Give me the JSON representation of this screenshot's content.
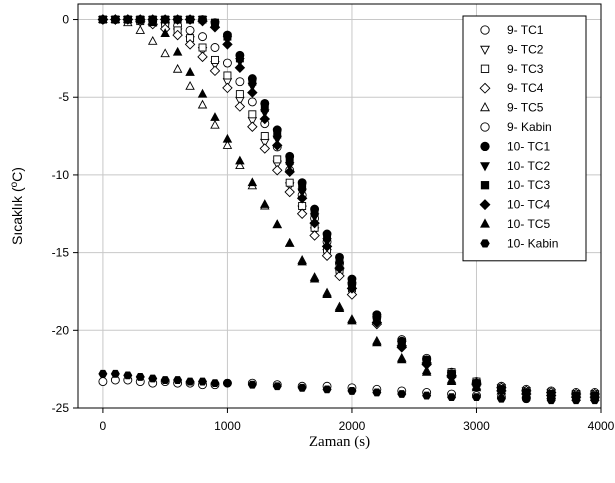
{
  "chart_data": {
    "type": "scatter",
    "title": "",
    "xlabel": "Zaman (s)",
    "ylabel": "Sıcaklık (",
    "ylabel_sup": "o",
    "ylabel_tail": "C)",
    "xlim": [
      -200,
      4000
    ],
    "ylim": [
      -25,
      1
    ],
    "xticks": [
      0,
      1000,
      2000,
      3000,
      4000
    ],
    "yticks": [
      0,
      -5,
      -10,
      -15,
      -20,
      -25
    ],
    "grid": true,
    "legend_position": "top-right",
    "series": [
      {
        "name": "9- TC1",
        "marker": "circle",
        "filled": false,
        "x": [
          0,
          100,
          200,
          300,
          400,
          500,
          600,
          700,
          800,
          900,
          1000,
          1100,
          1200,
          1300,
          1400,
          1500,
          1600,
          1700,
          1800,
          1900,
          2000,
          2200,
          2400,
          2600,
          2800,
          3000,
          3200,
          3400,
          3600,
          3800,
          3950
        ],
        "y": [
          0,
          0,
          0,
          0,
          -0.1,
          -0.2,
          -0.4,
          -0.7,
          -1.1,
          -1.8,
          -2.8,
          -4,
          -5.3,
          -6.7,
          -8.2,
          -9.7,
          -11.3,
          -12.8,
          -14.3,
          -15.7,
          -17,
          -19,
          -20.6,
          -21.8,
          -22.7,
          -23.3,
          -23.6,
          -23.8,
          -23.9,
          -24,
          -24
        ]
      },
      {
        "name": "9- TC2",
        "marker": "triangle-down",
        "filled": false,
        "x": [
          0,
          100,
          200,
          300,
          400,
          500,
          600,
          700,
          800,
          900,
          1000,
          1100,
          1200,
          1300,
          1400,
          1500,
          1600,
          1700,
          1800,
          1900,
          2000,
          2200,
          2400,
          2600,
          2800,
          3000,
          3200,
          3400,
          3600,
          3800,
          3950
        ],
        "y": [
          0,
          0,
          0,
          -0.1,
          -0.2,
          -0.4,
          -0.8,
          -1.3,
          -2,
          -2.9,
          -4,
          -5.2,
          -6.5,
          -7.9,
          -9.3,
          -10.7,
          -12.2,
          -13.6,
          -15,
          -16.3,
          -17.5,
          -19.4,
          -20.9,
          -22,
          -22.8,
          -23.4,
          -23.7,
          -23.9,
          -24,
          -24.1,
          -24.1
        ]
      },
      {
        "name": "9- TC3",
        "marker": "square",
        "filled": false,
        "x": [
          0,
          100,
          200,
          300,
          400,
          500,
          600,
          700,
          800,
          900,
          1000,
          1100,
          1200,
          1300,
          1400,
          1500,
          1600,
          1700,
          1800,
          1900,
          2000,
          2200,
          2400,
          2600,
          2800,
          3000,
          3200,
          3400,
          3600,
          3800,
          3950
        ],
        "y": [
          0,
          0,
          0,
          -0.1,
          -0.2,
          -0.4,
          -0.7,
          -1.2,
          -1.8,
          -2.6,
          -3.6,
          -4.8,
          -6.1,
          -7.5,
          -9,
          -10.5,
          -12,
          -13.4,
          -14.8,
          -16.1,
          -17.3,
          -19.3,
          -20.8,
          -21.9,
          -22.7,
          -23.3,
          -23.7,
          -23.9,
          -24,
          -24.1,
          -24.1
        ]
      },
      {
        "name": "9- TC4",
        "marker": "diamond",
        "filled": false,
        "x": [
          0,
          100,
          200,
          300,
          400,
          500,
          600,
          700,
          800,
          900,
          1000,
          1100,
          1200,
          1300,
          1400,
          1500,
          1600,
          1700,
          1800,
          1900,
          2000,
          2200,
          2400,
          2600,
          2800,
          3000,
          3200,
          3400,
          3600,
          3800,
          3950
        ],
        "y": [
          0,
          0,
          0,
          -0.1,
          -0.3,
          -0.6,
          -1,
          -1.6,
          -2.4,
          -3.3,
          -4.4,
          -5.6,
          -6.9,
          -8.3,
          -9.7,
          -11.1,
          -12.5,
          -13.9,
          -15.2,
          -16.5,
          -17.7,
          -19.6,
          -21,
          -22.1,
          -22.9,
          -23.4,
          -23.7,
          -23.9,
          -24,
          -24.1,
          -24.1
        ]
      },
      {
        "name": "9- TC5",
        "marker": "triangle-up",
        "filled": false,
        "x": [
          0,
          100,
          200,
          300,
          400,
          500,
          600,
          700,
          800,
          900,
          1000,
          1100,
          1200,
          1300,
          1400,
          1500,
          1600,
          1700,
          1800,
          1900,
          2000,
          2200,
          2400,
          2600,
          2800,
          3000,
          3200,
          3400,
          3600,
          3800,
          3950
        ],
        "y": [
          0,
          0,
          -0.2,
          -0.7,
          -1.4,
          -2.2,
          -3.2,
          -4.3,
          -5.5,
          -6.8,
          -8.1,
          -9.4,
          -10.7,
          -12,
          -13.2,
          -14.4,
          -15.5,
          -16.6,
          -17.6,
          -18.5,
          -19.3,
          -20.7,
          -21.8,
          -22.6,
          -23.2,
          -23.6,
          -23.9,
          -24.1,
          -24.2,
          -24.3,
          -24.3
        ]
      },
      {
        "name": "9- Kabin",
        "marker": "circle",
        "filled": false,
        "x": [
          0,
          100,
          200,
          300,
          400,
          500,
          600,
          700,
          800,
          900,
          1000,
          1200,
          1400,
          1600,
          1800,
          2000,
          2200,
          2400,
          2600,
          2800,
          3000,
          3200,
          3400,
          3600,
          3800,
          3950
        ],
        "y": [
          -23.3,
          -23.2,
          -23.2,
          -23.3,
          -23.4,
          -23.3,
          -23.4,
          -23.4,
          -23.5,
          -23.5,
          -23.4,
          -23.4,
          -23.5,
          -23.6,
          -23.6,
          -23.7,
          -23.8,
          -23.9,
          -24,
          -24.1,
          -24.2,
          -24.3,
          -24.4,
          -24.4,
          -24.3,
          -24.4
        ]
      },
      {
        "name": "10- TC1",
        "marker": "circle",
        "filled": true,
        "x": [
          0,
          100,
          200,
          300,
          400,
          500,
          600,
          700,
          800,
          900,
          1000,
          1100,
          1200,
          1300,
          1400,
          1500,
          1600,
          1700,
          1800,
          1900,
          2000,
          2200,
          2400,
          2600,
          2800,
          3000,
          3200,
          3400,
          3600,
          3800,
          3950
        ],
        "y": [
          0,
          0,
          0,
          0,
          0,
          0,
          0,
          0,
          0,
          -0.2,
          -1,
          -2.3,
          -3.8,
          -5.4,
          -7.1,
          -8.8,
          -10.5,
          -12.2,
          -13.8,
          -15.3,
          -16.7,
          -19,
          -20.7,
          -21.9,
          -22.8,
          -23.4,
          -23.8,
          -24,
          -24.1,
          -24.2,
          -24.2
        ]
      },
      {
        "name": "10- TC2",
        "marker": "triangle-down",
        "filled": true,
        "x": [
          0,
          100,
          200,
          300,
          400,
          500,
          600,
          700,
          800,
          900,
          1000,
          1100,
          1200,
          1300,
          1400,
          1500,
          1600,
          1700,
          1800,
          1900,
          2000,
          2200,
          2400,
          2600,
          2800,
          3000,
          3200,
          3400,
          3600,
          3800,
          3950
        ],
        "y": [
          0,
          0,
          0,
          0,
          0,
          0,
          0,
          0,
          0,
          -0.3,
          -1.3,
          -2.7,
          -4.3,
          -6,
          -7.7,
          -9.4,
          -11.1,
          -12.7,
          -14.3,
          -15.8,
          -17.1,
          -19.3,
          -20.9,
          -22.1,
          -22.9,
          -23.5,
          -23.8,
          -24,
          -24.2,
          -24.2,
          -24.3
        ]
      },
      {
        "name": "10- TC3",
        "marker": "square",
        "filled": true,
        "x": [
          0,
          100,
          200,
          300,
          400,
          500,
          600,
          700,
          800,
          900,
          1000,
          1100,
          1200,
          1300,
          1400,
          1500,
          1600,
          1700,
          1800,
          1900,
          2000,
          2200,
          2400,
          2600,
          2800,
          3000,
          3200,
          3400,
          3600,
          3800,
          3950
        ],
        "y": [
          0,
          0,
          0,
          0,
          0,
          0,
          0,
          0,
          0,
          -0.2,
          -1.1,
          -2.5,
          -4,
          -5.7,
          -7.4,
          -9.1,
          -10.8,
          -12.4,
          -14,
          -15.5,
          -16.9,
          -19.1,
          -20.8,
          -22,
          -22.8,
          -23.4,
          -23.8,
          -24,
          -24.1,
          -24.2,
          -24.2
        ]
      },
      {
        "name": "10- TC4",
        "marker": "diamond",
        "filled": true,
        "x": [
          0,
          100,
          200,
          300,
          400,
          500,
          600,
          700,
          800,
          900,
          1000,
          1100,
          1200,
          1300,
          1400,
          1500,
          1600,
          1700,
          1800,
          1900,
          2000,
          2200,
          2400,
          2600,
          2800,
          3000,
          3200,
          3400,
          3600,
          3800,
          3950
        ],
        "y": [
          0,
          0,
          0,
          0,
          0,
          0,
          0,
          0,
          -0.1,
          -0.5,
          -1.6,
          -3.1,
          -4.7,
          -6.4,
          -8.1,
          -9.8,
          -11.5,
          -13.1,
          -14.6,
          -16,
          -17.3,
          -19.5,
          -21.1,
          -22.2,
          -23,
          -23.5,
          -23.9,
          -24.1,
          -24.2,
          -24.3,
          -24.3
        ]
      },
      {
        "name": "10- TC5",
        "marker": "triangle-up",
        "filled": true,
        "x": [
          0,
          100,
          200,
          300,
          400,
          500,
          600,
          700,
          800,
          900,
          1000,
          1100,
          1200,
          1300,
          1400,
          1500,
          1600,
          1700,
          1800,
          1900,
          2000,
          2200,
          2400,
          2600,
          2800,
          3000,
          3200,
          3400,
          3600,
          3800,
          3950
        ],
        "y": [
          0,
          0,
          0,
          0,
          -0.2,
          -0.9,
          -2.1,
          -3.4,
          -4.8,
          -6.3,
          -7.7,
          -9.1,
          -10.5,
          -11.9,
          -13.2,
          -14.4,
          -15.6,
          -16.7,
          -17.7,
          -18.6,
          -19.4,
          -20.8,
          -21.9,
          -22.7,
          -23.3,
          -23.7,
          -23.9,
          -24.1,
          -24.2,
          -24.3,
          -24.3
        ]
      },
      {
        "name": "10- Kabin",
        "marker": "hexagon",
        "filled": true,
        "x": [
          0,
          100,
          200,
          300,
          400,
          500,
          600,
          700,
          800,
          900,
          1000,
          1200,
          1400,
          1600,
          1800,
          2000,
          2200,
          2400,
          2600,
          2800,
          3000,
          3200,
          3400,
          3600,
          3800,
          3950
        ],
        "y": [
          -22.8,
          -22.8,
          -22.9,
          -23,
          -23.1,
          -23.2,
          -23.2,
          -23.3,
          -23.3,
          -23.4,
          -23.4,
          -23.5,
          -23.6,
          -23.7,
          -23.8,
          -23.9,
          -24,
          -24.1,
          -24.2,
          -24.3,
          -24.3,
          -24.4,
          -24.4,
          -24.5,
          -24.5,
          -24.5
        ]
      }
    ]
  }
}
